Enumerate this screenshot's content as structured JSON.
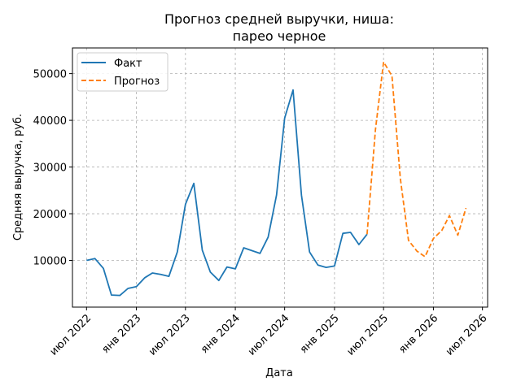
{
  "chart_data": {
    "type": "line",
    "title_lines": [
      "Прогноз средней выручки, ниша:",
      "парео черное"
    ],
    "xlabel": "Дата",
    "ylabel": "Средняя выручка, руб.",
    "x_ticks": [
      {
        "date": "2022-07-01",
        "label": "июл 2022"
      },
      {
        "date": "2023-01-01",
        "label": "янв 2023"
      },
      {
        "date": "2023-07-01",
        "label": "июл 2023"
      },
      {
        "date": "2024-01-01",
        "label": "янв 2024"
      },
      {
        "date": "2024-07-01",
        "label": "июл 2024"
      },
      {
        "date": "2025-01-01",
        "label": "янв 2025"
      },
      {
        "date": "2025-07-01",
        "label": "июл 2025"
      },
      {
        "date": "2026-01-01",
        "label": "янв 2026"
      },
      {
        "date": "2026-07-01",
        "label": "июл 2026"
      }
    ],
    "y_ticks": [
      {
        "value": 10000,
        "label": "10000"
      },
      {
        "value": 20000,
        "label": "20000"
      },
      {
        "value": 30000,
        "label": "30000"
      },
      {
        "value": 40000,
        "label": "40000"
      },
      {
        "value": 50000,
        "label": "50000"
      }
    ],
    "xlim": [
      "2022-05-10",
      "2026-07-20"
    ],
    "ylim": [
      0,
      55500
    ],
    "grid": true,
    "legend_position": "top-left",
    "series": [
      {
        "name": "Факт",
        "color": "#1f77b4",
        "style": "solid",
        "points": [
          {
            "x": "2022-07-01",
            "y": 10000
          },
          {
            "x": "2022-08-01",
            "y": 10400
          },
          {
            "x": "2022-09-01",
            "y": 8300
          },
          {
            "x": "2022-10-01",
            "y": 2600
          },
          {
            "x": "2022-11-01",
            "y": 2500
          },
          {
            "x": "2022-12-01",
            "y": 4000
          },
          {
            "x": "2023-01-01",
            "y": 4400
          },
          {
            "x": "2023-02-01",
            "y": 6300
          },
          {
            "x": "2023-03-01",
            "y": 7300
          },
          {
            "x": "2023-04-01",
            "y": 7000
          },
          {
            "x": "2023-05-01",
            "y": 6600
          },
          {
            "x": "2023-06-01",
            "y": 11800
          },
          {
            "x": "2023-07-01",
            "y": 22000
          },
          {
            "x": "2023-08-01",
            "y": 26500
          },
          {
            "x": "2023-09-01",
            "y": 12200
          },
          {
            "x": "2023-10-01",
            "y": 7500
          },
          {
            "x": "2023-11-01",
            "y": 5700
          },
          {
            "x": "2023-12-01",
            "y": 8600
          },
          {
            "x": "2024-01-01",
            "y": 8200
          },
          {
            "x": "2024-02-01",
            "y": 12700
          },
          {
            "x": "2024-04-01",
            "y": 11500
          },
          {
            "x": "2024-05-01",
            "y": 15000
          },
          {
            "x": "2024-06-01",
            "y": 24000
          },
          {
            "x": "2024-07-01",
            "y": 40500
          },
          {
            "x": "2024-08-01",
            "y": 46500
          },
          {
            "x": "2024-09-01",
            "y": 24000
          },
          {
            "x": "2024-10-01",
            "y": 11800
          },
          {
            "x": "2024-11-01",
            "y": 9000
          },
          {
            "x": "2024-12-01",
            "y": 8500
          },
          {
            "x": "2025-01-01",
            "y": 8800
          },
          {
            "x": "2025-02-01",
            "y": 15800
          },
          {
            "x": "2025-03-01",
            "y": 16000
          },
          {
            "x": "2025-04-01",
            "y": 13400
          },
          {
            "x": "2025-05-01",
            "y": 15600
          }
        ]
      },
      {
        "name": "Прогноз",
        "color": "#ff7f0e",
        "style": "dashed",
        "points": [
          {
            "x": "2025-05-01",
            "y": 15600
          },
          {
            "x": "2025-06-01",
            "y": 38000
          },
          {
            "x": "2025-07-01",
            "y": 52500
          },
          {
            "x": "2025-08-01",
            "y": 49500
          },
          {
            "x": "2025-09-01",
            "y": 27500
          },
          {
            "x": "2025-10-01",
            "y": 14300
          },
          {
            "x": "2025-11-01",
            "y": 12000
          },
          {
            "x": "2025-12-01",
            "y": 10800
          },
          {
            "x": "2026-01-01",
            "y": 14700
          },
          {
            "x": "2026-02-01",
            "y": 16400
          },
          {
            "x": "2026-03-01",
            "y": 19600
          },
          {
            "x": "2026-04-01",
            "y": 15400
          },
          {
            "x": "2026-05-01",
            "y": 21200
          }
        ]
      }
    ]
  }
}
